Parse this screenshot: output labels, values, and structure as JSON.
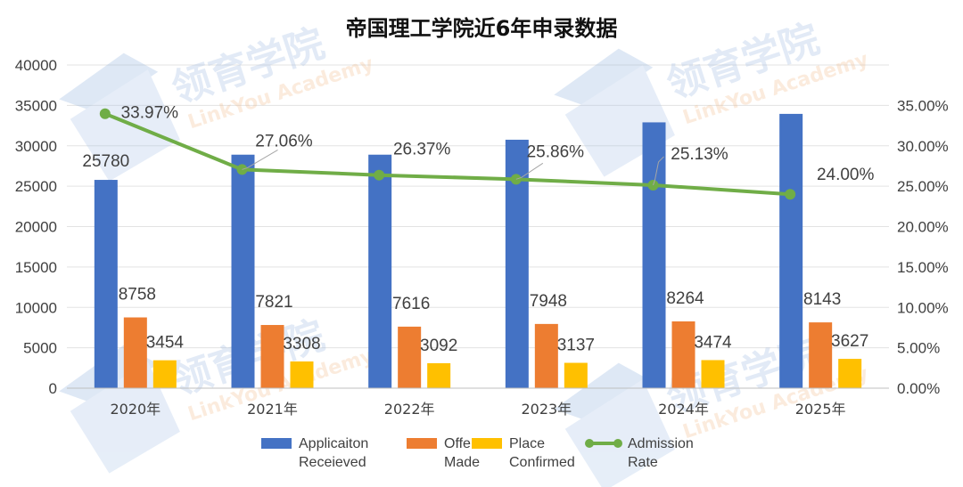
{
  "chart_data": {
    "type": "bar",
    "title": "帝国理工学院近6年申录数据",
    "categories": [
      "2020年",
      "2021年",
      "2022年",
      "2023年",
      "2024年",
      "2025年"
    ],
    "series": [
      {
        "name": "Applicaiton Receieved",
        "values": [
          25780,
          28900,
          28900,
          30750,
          32900,
          33950
        ],
        "color": "#4472C4",
        "labels": [
          "25780",
          "",
          "",
          "",
          "",
          ""
        ]
      },
      {
        "name": "Offers Made",
        "values": [
          8758,
          7821,
          7616,
          7948,
          8264,
          8143
        ],
        "color": "#ED7D31",
        "labels": [
          "8758",
          "7821",
          "7616",
          "7948",
          "8264",
          "8143"
        ]
      },
      {
        "name": "Place Confirmed",
        "values": [
          3454,
          3308,
          3092,
          3137,
          3474,
          3627
        ],
        "color": "#FFC000",
        "labels": [
          "3454",
          "3308",
          "3092",
          "3137",
          "3474",
          "3627"
        ]
      }
    ],
    "line_series": {
      "name": "Admission Rate",
      "axis": "right",
      "color": "#70AD47",
      "values": [
        33.97,
        27.06,
        26.37,
        25.86,
        25.13,
        24.0
      ],
      "labels": [
        "33.97%",
        "27.06%",
        "26.37%",
        "25.86%",
        "25.13%",
        "24.00%"
      ]
    },
    "ylim": [
      0,
      40000
    ],
    "yticks": [
      "0",
      "5000",
      "10000",
      "15000",
      "20000",
      "25000",
      "30000",
      "35000",
      "40000"
    ],
    "y2lim": [
      0,
      35
    ],
    "y2ticks": [
      "0.00%",
      "5.00%",
      "10.00%",
      "15.00%",
      "20.00%",
      "25.00%",
      "30.00%",
      "35.00%"
    ],
    "grid": true,
    "legend": "bottom",
    "legend_items": [
      {
        "name": "Applicaiton Receieved",
        "lines": [
          "Applicaiton",
          "Receieved"
        ],
        "kind": "bar",
        "color": "#4472C4"
      },
      {
        "name": "Offers Made",
        "lines": [
          "Offers",
          "Made"
        ],
        "kind": "bar",
        "color": "#ED7D31"
      },
      {
        "name": "Place Confirmed",
        "lines": [
          "Place",
          "Confirmed"
        ],
        "kind": "bar",
        "color": "#FFC000"
      },
      {
        "name": "Admission Rate",
        "lines": [
          "Admission",
          "Rate"
        ],
        "kind": "line",
        "color": "#70AD47"
      }
    ]
  },
  "watermark": {
    "logo_text": "领育学院",
    "sub_text": "LinkYou Academy"
  }
}
